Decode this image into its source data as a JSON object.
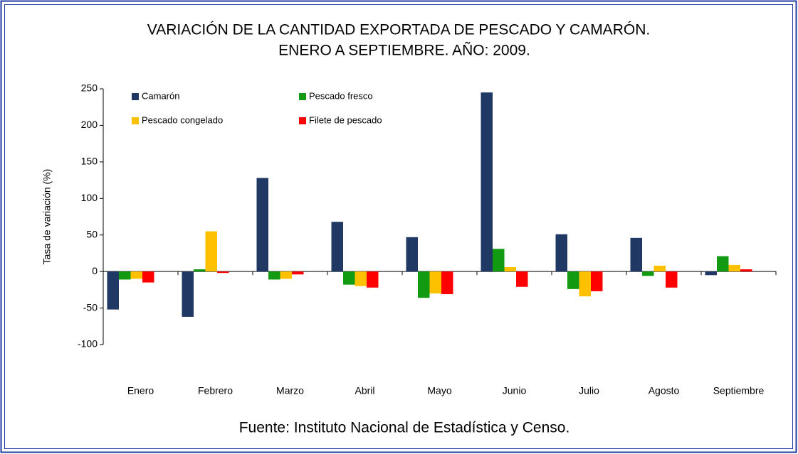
{
  "chart_data": {
    "type": "bar",
    "title": "VARIACIÓN DE LA CANTIDAD EXPORTADA DE PESCADO Y CAMARÓN.",
    "subtitle": "ENERO A SEPTIEMBRE. AÑO: 2009.",
    "y_label": "Tasa de variación (%)",
    "source": "Fuente: Instituto Nacional de Estadística y Censo.",
    "categories": [
      "Enero",
      "Febrero",
      "Marzo",
      "Abril",
      "Mayo",
      "Junio",
      "Julio",
      "Agosto",
      "Septiembre"
    ],
    "series": [
      {
        "name": "Camarón",
        "color": "#1f3864",
        "values": [
          -52,
          -62,
          128,
          68,
          47,
          245,
          51,
          46,
          -5
        ]
      },
      {
        "name": "Pescado fresco",
        "color": "#129b12",
        "values": [
          -11,
          3,
          -11,
          -18,
          -36,
          31,
          -24,
          -6,
          21
        ]
      },
      {
        "name": "Pescado congelado",
        "color": "#ffc000",
        "values": [
          -10,
          55,
          -10,
          -20,
          -30,
          6,
          -34,
          8,
          9
        ]
      },
      {
        "name": "Filete de pescado",
        "color": "#ff0000",
        "values": [
          -15,
          -2,
          -4,
          -22,
          -31,
          -21,
          -27,
          -22,
          3
        ]
      }
    ],
    "ylim": [
      -100,
      250
    ],
    "yticks": [
      -100,
      -50,
      0,
      50,
      100,
      150,
      200,
      250
    ],
    "grid": false
  }
}
